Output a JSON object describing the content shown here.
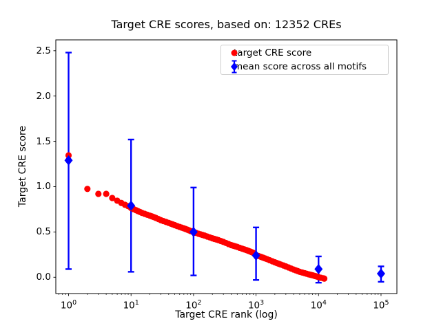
{
  "figure": {
    "title": "Target CRE scores, based on: 12352 CREs",
    "background": "#ffffff"
  },
  "axes": {
    "x": {
      "label": "Target CRE rank (log)",
      "scale": "log",
      "tick_exponents": [
        0,
        1,
        2,
        3,
        4,
        5
      ],
      "tick_labels": [
        "10⁰",
        "10¹",
        "10²",
        "10³",
        "10⁴",
        "10⁵"
      ]
    },
    "y": {
      "label": "Target CRE score",
      "tick_values": [
        0.0,
        0.5,
        1.0,
        1.5,
        2.0,
        2.5
      ],
      "tick_labels": [
        "0.0",
        "0.5",
        "1.0",
        "1.5",
        "2.0",
        "2.5"
      ]
    }
  },
  "legend": {
    "position": "upper right",
    "items": [
      {
        "label": "target CRE score",
        "marker": "circle",
        "color": "#ff0000"
      },
      {
        "label": "mean score across all motifs",
        "marker": "diamond-errorbar",
        "color": "#0000ff"
      }
    ]
  },
  "colors": {
    "target_series": "#ff0000",
    "mean_series": "#0000ff",
    "axis": "#000000",
    "legend_border": "#cccccc"
  },
  "chart_data": {
    "type": "scatter",
    "title": "Target CRE scores, based on: 12352 CREs",
    "xlabel": "Target CRE rank (log)",
    "ylabel": "Target CRE score",
    "x_scale": "log",
    "xlim": [
      0.625,
      179500
    ],
    "ylim": [
      -0.18,
      2.62
    ],
    "grid": false,
    "legend_position": "upper right",
    "n_points_stated": 12352,
    "series": [
      {
        "name": "target CRE score",
        "type": "scatter",
        "marker": "circle",
        "color": "#ff0000",
        "sampling_note": "12352 ranked CREs; monotonically decreasing curve sampled at representative ranks",
        "points": [
          [
            1,
            1.345
          ],
          [
            2,
            0.975
          ],
          [
            3,
            0.92
          ],
          [
            4,
            0.92
          ],
          [
            5,
            0.875
          ],
          [
            6,
            0.845
          ],
          [
            7,
            0.82
          ],
          [
            8,
            0.8
          ],
          [
            9,
            0.785
          ],
          [
            10,
            0.765
          ],
          [
            12,
            0.74
          ],
          [
            15,
            0.71
          ],
          [
            20,
            0.68
          ],
          [
            25,
            0.655
          ],
          [
            30,
            0.63
          ],
          [
            40,
            0.6
          ],
          [
            50,
            0.575
          ],
          [
            60,
            0.555
          ],
          [
            70,
            0.54
          ],
          [
            80,
            0.525
          ],
          [
            90,
            0.51
          ],
          [
            100,
            0.5
          ],
          [
            120,
            0.48
          ],
          [
            150,
            0.46
          ],
          [
            200,
            0.43
          ],
          [
            250,
            0.41
          ],
          [
            300,
            0.39
          ],
          [
            400,
            0.355
          ],
          [
            500,
            0.335
          ],
          [
            600,
            0.315
          ],
          [
            700,
            0.3
          ],
          [
            800,
            0.285
          ],
          [
            900,
            0.27
          ],
          [
            1000,
            0.245
          ],
          [
            1200,
            0.225
          ],
          [
            1500,
            0.2
          ],
          [
            2000,
            0.165
          ],
          [
            2500,
            0.14
          ],
          [
            3000,
            0.12
          ],
          [
            4000,
            0.085
          ],
          [
            5000,
            0.06
          ],
          [
            6000,
            0.045
          ],
          [
            7000,
            0.032
          ],
          [
            8000,
            0.022
          ],
          [
            9000,
            0.012
          ],
          [
            10000,
            0.002
          ],
          [
            11000,
            -0.006
          ],
          [
            12000,
            -0.012
          ],
          [
            12352,
            -0.015
          ]
        ]
      },
      {
        "name": "mean score across all motifs",
        "type": "errorbar",
        "marker": "diamond",
        "color": "#0000ff",
        "points": [
          {
            "x": 1,
            "mean": 1.29,
            "lo": 0.09,
            "hi": 2.48
          },
          {
            "x": 10,
            "mean": 0.79,
            "lo": 0.06,
            "hi": 1.52
          },
          {
            "x": 100,
            "mean": 0.5,
            "lo": 0.02,
            "hi": 0.99
          },
          {
            "x": 1000,
            "mean": 0.24,
            "lo": -0.03,
            "hi": 0.55
          },
          {
            "x": 10000,
            "mean": 0.09,
            "lo": -0.06,
            "hi": 0.23
          },
          {
            "x": 100000,
            "mean": 0.04,
            "lo": -0.05,
            "hi": 0.12
          }
        ]
      }
    ]
  }
}
